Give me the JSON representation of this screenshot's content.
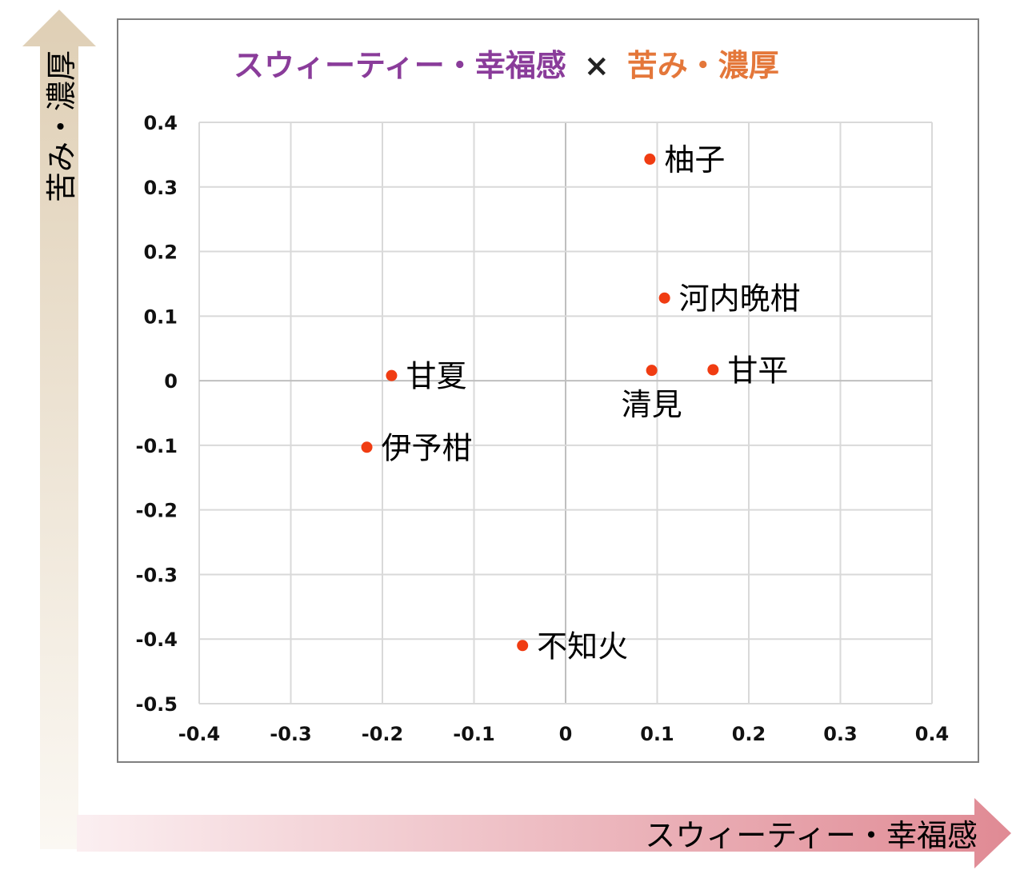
{
  "chart_data": {
    "type": "scatter",
    "title_part1": "スウィーティー・幸福感",
    "title_separator": "×",
    "title_part2": "苦み・濃厚",
    "xlabel": "スウィーティー・幸福感",
    "ylabel": "苦み・濃厚",
    "xlim": [
      -0.4,
      0.4
    ],
    "ylim": [
      -0.5,
      0.4
    ],
    "x_ticks": [
      "-0.4",
      "-0.3",
      "-0.2",
      "-0.1",
      "0",
      "0.1",
      "0.2",
      "0.3",
      "0.4"
    ],
    "y_ticks": [
      "0.4",
      "0.3",
      "0.2",
      "0.1",
      "0",
      "-0.1",
      "-0.2",
      "-0.3",
      "-0.4",
      "-0.5"
    ],
    "grid": true,
    "points": [
      {
        "label": "柚子",
        "x": 0.092,
        "y": 0.343,
        "label_side": "right"
      },
      {
        "label": "河内晩柑",
        "x": 0.108,
        "y": 0.128,
        "label_side": "right"
      },
      {
        "label": "甘平",
        "x": 0.161,
        "y": 0.017,
        "label_side": "right"
      },
      {
        "label": "清見",
        "x": 0.094,
        "y": 0.016,
        "label_side": "below"
      },
      {
        "label": "甘夏",
        "x": -0.19,
        "y": 0.008,
        "label_side": "right"
      },
      {
        "label": "伊予柑",
        "x": -0.217,
        "y": -0.103,
        "label_side": "right"
      },
      {
        "label": "不知火",
        "x": -0.047,
        "y": -0.41,
        "label_side": "right"
      }
    ]
  },
  "colors": {
    "title_part1": "#8a3c9a",
    "title_part2": "#e4773a",
    "point": "#f03c12",
    "grid": "#d9d9d9",
    "frame": "#808080",
    "y_arrow": "#dfcfb5",
    "x_arrow": "#e08a94"
  }
}
